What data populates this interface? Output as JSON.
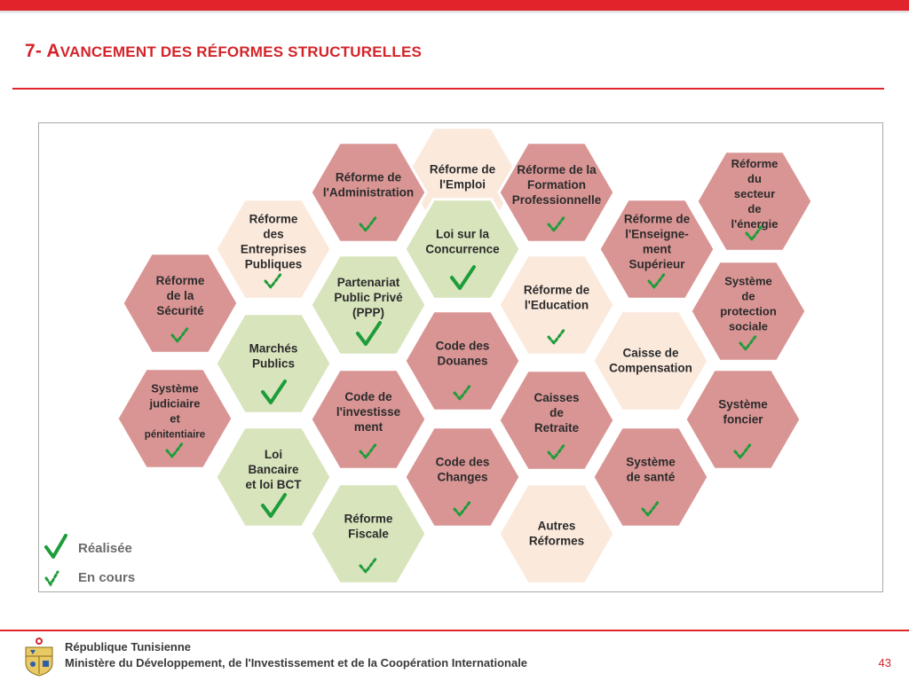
{
  "header": {
    "title_number": "7- ",
    "title_initial": "A",
    "title_rest": "VANCEMENT DES RÉFORMES STRUCTURELLES"
  },
  "colors": {
    "accent": "#e1232b",
    "in_progress_fill": "#d99594",
    "done_fill": "#d8e4bc",
    "other_fill": "#fbe9dc",
    "check": "#1e9c3a"
  },
  "reforms": [
    {
      "id": "emploi",
      "lines": [
        "Réforme de",
        "l'Emploi"
      ],
      "category": "other",
      "status": "none"
    },
    {
      "id": "administration",
      "lines": [
        "Réforme de",
        "l'Administration"
      ],
      "category": "in_progress",
      "status": "en_cours"
    },
    {
      "id": "formation",
      "lines": [
        "Réforme de la",
        "Formation",
        "Professionnelle"
      ],
      "category": "in_progress",
      "status": "en_cours"
    },
    {
      "id": "energie",
      "lines": [
        "Réforme",
        "du",
        "secteur",
        "de",
        "l'énergie"
      ],
      "category": "in_progress",
      "status": "en_cours"
    },
    {
      "id": "entreprises",
      "lines": [
        "Réforme",
        "des",
        "Entreprises",
        "Publiques"
      ],
      "category": "other",
      "status": "en_cours"
    },
    {
      "id": "concurrence",
      "lines": [
        "Loi sur la",
        "Concurrence"
      ],
      "category": "done",
      "status": "realisee"
    },
    {
      "id": "enseignement",
      "lines": [
        "Réforme de",
        "l'Enseigne-",
        "ment",
        "Supérieur"
      ],
      "category": "in_progress",
      "status": "en_cours"
    },
    {
      "id": "securite",
      "lines": [
        "Réforme",
        "de la",
        "Sécurité"
      ],
      "category": "in_progress",
      "status": "en_cours"
    },
    {
      "id": "ppp",
      "lines": [
        "Partenariat",
        "Public  Privé",
        "(PPP)"
      ],
      "category": "done",
      "status": "realisee"
    },
    {
      "id": "education",
      "lines": [
        "Réforme de",
        "l'Education"
      ],
      "category": "other",
      "status": "en_cours"
    },
    {
      "id": "protection",
      "lines": [
        "Système",
        "de",
        "protection",
        "sociale"
      ],
      "category": "in_progress",
      "status": "en_cours"
    },
    {
      "id": "marches",
      "lines": [
        "Marchés",
        "Publics"
      ],
      "category": "done",
      "status": "realisee"
    },
    {
      "id": "douanes",
      "lines": [
        "Code des",
        "Douanes"
      ],
      "category": "in_progress",
      "status": "en_cours"
    },
    {
      "id": "compensation",
      "lines": [
        "Caisse de",
        "Compensation"
      ],
      "category": "other",
      "status": "none"
    },
    {
      "id": "judiciaire",
      "lines": [
        "Système",
        "judiciaire",
        "et",
        "pénitentiaire"
      ],
      "category": "in_progress",
      "status": "en_cours"
    },
    {
      "id": "investissement",
      "lines": [
        "Code de",
        "l'investisse",
        "ment"
      ],
      "category": "in_progress",
      "status": "en_cours"
    },
    {
      "id": "retraite",
      "lines": [
        "Caisses",
        "de",
        "Retraite"
      ],
      "category": "in_progress",
      "status": "en_cours"
    },
    {
      "id": "foncier",
      "lines": [
        "Système",
        "foncier"
      ],
      "category": "in_progress",
      "status": "en_cours"
    },
    {
      "id": "bancaire",
      "lines": [
        "Loi",
        "Bancaire",
        "et loi BCT"
      ],
      "category": "done",
      "status": "realisee"
    },
    {
      "id": "changes",
      "lines": [
        "Code des",
        "Changes"
      ],
      "category": "in_progress",
      "status": "en_cours"
    },
    {
      "id": "sante",
      "lines": [
        "Système",
        "de santé"
      ],
      "category": "in_progress",
      "status": "en_cours"
    },
    {
      "id": "fiscale",
      "lines": [
        "Réforme",
        "Fiscale"
      ],
      "category": "done",
      "status": "en_cours"
    },
    {
      "id": "autres",
      "lines": [
        "Autres",
        "Réformes"
      ],
      "category": "other",
      "status": "none"
    }
  ],
  "legend": {
    "realisee": "Réalisée",
    "en_cours": "En cours"
  },
  "footer": {
    "line1": "République Tunisienne",
    "line2": "Ministère du Développement, de l'Investissement et de la Coopération Internationale",
    "page_number": "43"
  }
}
